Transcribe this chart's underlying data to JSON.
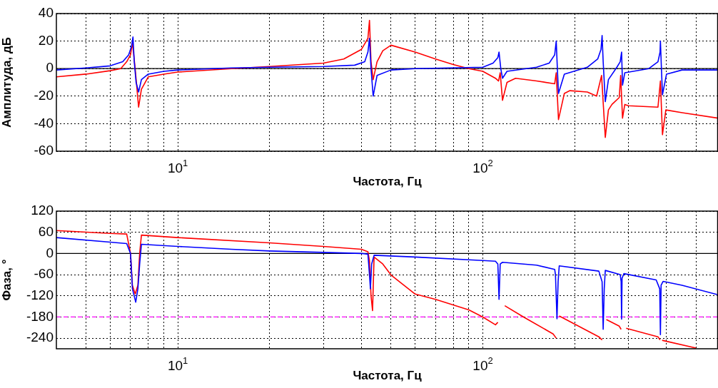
{
  "chart_data": [
    {
      "type": "line",
      "xlabel": "Частота, Гц",
      "ylabel": "Амплитуда, дБ",
      "log": "x",
      "grid": true,
      "xlim": [
        4,
        590
      ],
      "ylim": [
        -60,
        40
      ],
      "yticks": [
        -60,
        -40,
        -20,
        0,
        20,
        40
      ],
      "xticks": [
        {
          "value": 5,
          "label": null
        },
        {
          "value": 6,
          "label": null
        },
        {
          "value": 7,
          "label": null
        },
        {
          "value": 8,
          "label": null
        },
        {
          "value": 9,
          "label": null
        },
        {
          "value": 10,
          "label": "10$^{1}$"
        },
        {
          "value": 20,
          "label": null
        },
        {
          "value": 30,
          "label": null
        },
        {
          "value": 40,
          "label": null
        },
        {
          "value": 50,
          "label": null
        },
        {
          "value": 60,
          "label": null
        },
        {
          "value": 70,
          "label": null
        },
        {
          "value": 80,
          "label": null
        },
        {
          "value": 90,
          "label": null
        },
        {
          "value": 100,
          "label": "10$^{2}$"
        },
        {
          "value": 200,
          "label": null
        },
        {
          "value": 300,
          "label": null
        },
        {
          "value": 400,
          "label": null
        },
        {
          "value": 500,
          "label": null
        }
      ],
      "ref_lines": [
        {
          "axis": "y",
          "value": 0,
          "color": "#000000"
        }
      ],
      "series": [
        {
          "color": "#0000ff",
          "x": [
            4,
            5,
            6,
            6.6,
            6.9,
            7.05,
            7.13,
            7.2,
            7.3,
            7.44,
            7.6,
            8,
            9,
            10,
            15,
            20,
            30,
            38,
            41,
            42,
            42.5,
            43,
            43.7,
            45,
            50,
            60,
            100,
            108,
            112,
            113,
            114.5,
            116,
            120,
            150,
            165,
            172,
            174,
            175.5,
            177,
            185,
            220,
            238,
            244,
            246,
            248,
            252,
            258,
            275,
            282,
            285,
            286,
            287,
            292,
            350,
            375,
            381,
            382,
            385,
            388,
            400,
            450,
            590
          ],
          "values": [
            -1,
            0.5,
            2,
            5,
            10,
            16,
            23,
            5,
            -10,
            -17,
            -8,
            -4,
            -2,
            -1,
            0.5,
            1,
            1.5,
            2.5,
            5,
            12,
            22,
            0,
            -20,
            -5,
            -1,
            0,
            1,
            4,
            8,
            12,
            0,
            -7,
            -2,
            1,
            4,
            10,
            20,
            0,
            -18,
            -4,
            1,
            7,
            14,
            24,
            5,
            -24,
            -8,
            1,
            5,
            12,
            0,
            -12,
            -3,
            0,
            5,
            12,
            20,
            0,
            -19,
            -4,
            -1,
            -1
          ]
        },
        {
          "color": "#ff0000",
          "x": [
            4,
            5,
            6,
            6.5,
            6.8,
            7.0,
            7.1,
            7.25,
            7.44,
            7.6,
            8,
            9,
            10,
            15,
            20,
            30,
            35,
            40,
            42,
            42.5,
            43,
            43.7,
            45,
            47,
            50,
            60,
            70,
            80,
            90,
            100,
            110,
            112.6,
            114,
            116,
            120,
            128,
            150,
            172,
            174,
            177,
            185,
            193,
            220,
            236,
            245,
            252,
            258,
            265,
            280,
            283,
            287,
            292,
            300,
            375,
            382,
            388,
            398,
            450,
            590
          ],
          "values": [
            -6,
            -4,
            -1.5,
            0,
            5,
            10,
            19,
            0,
            -28,
            -15,
            -6,
            -4,
            -2.5,
            0,
            1.5,
            4,
            7,
            14,
            22,
            35,
            5,
            -8,
            5,
            13,
            17,
            12,
            7,
            3,
            0,
            -2,
            -7,
            -9,
            -3,
            -23,
            -10,
            -7,
            -9,
            -11,
            -3,
            -37,
            -18,
            -16,
            -17,
            -20,
            -5,
            -50,
            -30,
            -26,
            -21,
            -5,
            -36,
            -26,
            -27,
            -28,
            -9,
            -48,
            -30,
            -32,
            -36
          ]
        }
      ]
    },
    {
      "type": "line",
      "xlabel": "Частота, Гц",
      "ylabel": "Фаза, °",
      "log": "x",
      "grid": true,
      "xlim": [
        4,
        590
      ],
      "ylim": [
        -270,
        120
      ],
      "yticks": [
        -240,
        -180,
        -120,
        -60,
        0,
        60,
        120
      ],
      "xticks": [
        {
          "value": 5,
          "label": null
        },
        {
          "value": 6,
          "label": null
        },
        {
          "value": 7,
          "label": null
        },
        {
          "value": 8,
          "label": null
        },
        {
          "value": 9,
          "label": null
        },
        {
          "value": 10,
          "label": "10$^{1}$"
        },
        {
          "value": 20,
          "label": null
        },
        {
          "value": 30,
          "label": null
        },
        {
          "value": 40,
          "label": null
        },
        {
          "value": 50,
          "label": null
        },
        {
          "value": 60,
          "label": null
        },
        {
          "value": 70,
          "label": null
        },
        {
          "value": 80,
          "label": null
        },
        {
          "value": 90,
          "label": null
        },
        {
          "value": 100,
          "label": "10$^{2}$"
        },
        {
          "value": 200,
          "label": null
        },
        {
          "value": 300,
          "label": null
        },
        {
          "value": 400,
          "label": null
        },
        {
          "value": 500,
          "label": null
        }
      ],
      "ref_lines": [
        {
          "axis": "y",
          "value": 0,
          "color": "#000000"
        },
        {
          "axis": "y",
          "value": -180,
          "color": "#ff00ff",
          "line_style": "dashed"
        }
      ],
      "series": [
        {
          "color": "#0000ff",
          "x": [
            4,
            6,
            6.8,
            7.0,
            7.1,
            7.28,
            7.4,
            7.5,
            7.6,
            10,
            15,
            20,
            30,
            40,
            42,
            42.5,
            42.8,
            43.2,
            44,
            60,
            100,
            110,
            112,
            113,
            114,
            116,
            150,
            172,
            173,
            175,
            176.5,
            178,
            240,
            246,
            248,
            250,
            252,
            282,
            284,
            285,
            286,
            290,
            370,
            380,
            382,
            384,
            390,
            450,
            590
          ],
          "values": [
            45,
            32,
            28,
            0,
            -100,
            -138,
            -100,
            -30,
            26,
            20,
            12,
            7,
            3,
            0,
            -2,
            -60,
            -100,
            -30,
            -5,
            -10,
            -20,
            -22,
            -30,
            -130,
            -30,
            -25,
            -33,
            -45,
            -60,
            -185,
            -80,
            -35,
            -50,
            -80,
            -215,
            -100,
            -48,
            -60,
            -80,
            -186,
            -70,
            -57,
            -75,
            -100,
            -230,
            -90,
            -79,
            -90,
            -117
          ]
        },
        {
          "color": "#ff0000",
          "x": [
            4,
            6,
            6.8,
            7.0,
            7.1,
            7.25,
            7.4,
            7.5,
            7.6,
            10,
            20,
            30,
            40,
            42,
            42.5,
            43,
            43.5,
            44,
            47,
            50,
            60,
            70,
            90,
            100,
            110,
            112,
            113,
            116,
            118,
            136,
            170,
            174,
            175,
            177,
            178,
            240,
            246,
            247,
            250,
            254,
            280,
            284,
            285,
            287,
            295,
            375,
            381,
            382,
            385,
            387,
            500
          ],
          "values": [
            65,
            57,
            55,
            0,
            -90,
            -115,
            -90,
            0,
            52,
            45,
            30,
            20,
            12,
            5,
            -20,
            -120,
            -162,
            -10,
            -30,
            -61,
            -115,
            -130,
            -160,
            -180,
            -202,
            -195,
            null,
            null,
            -148,
            -180,
            -228,
            -240,
            null,
            null,
            -177,
            -236,
            -245,
            null,
            null,
            -187,
            -206,
            -215,
            null,
            null,
            -212,
            -236,
            -245,
            null,
            null,
            -246,
            -268
          ]
        }
      ]
    }
  ]
}
